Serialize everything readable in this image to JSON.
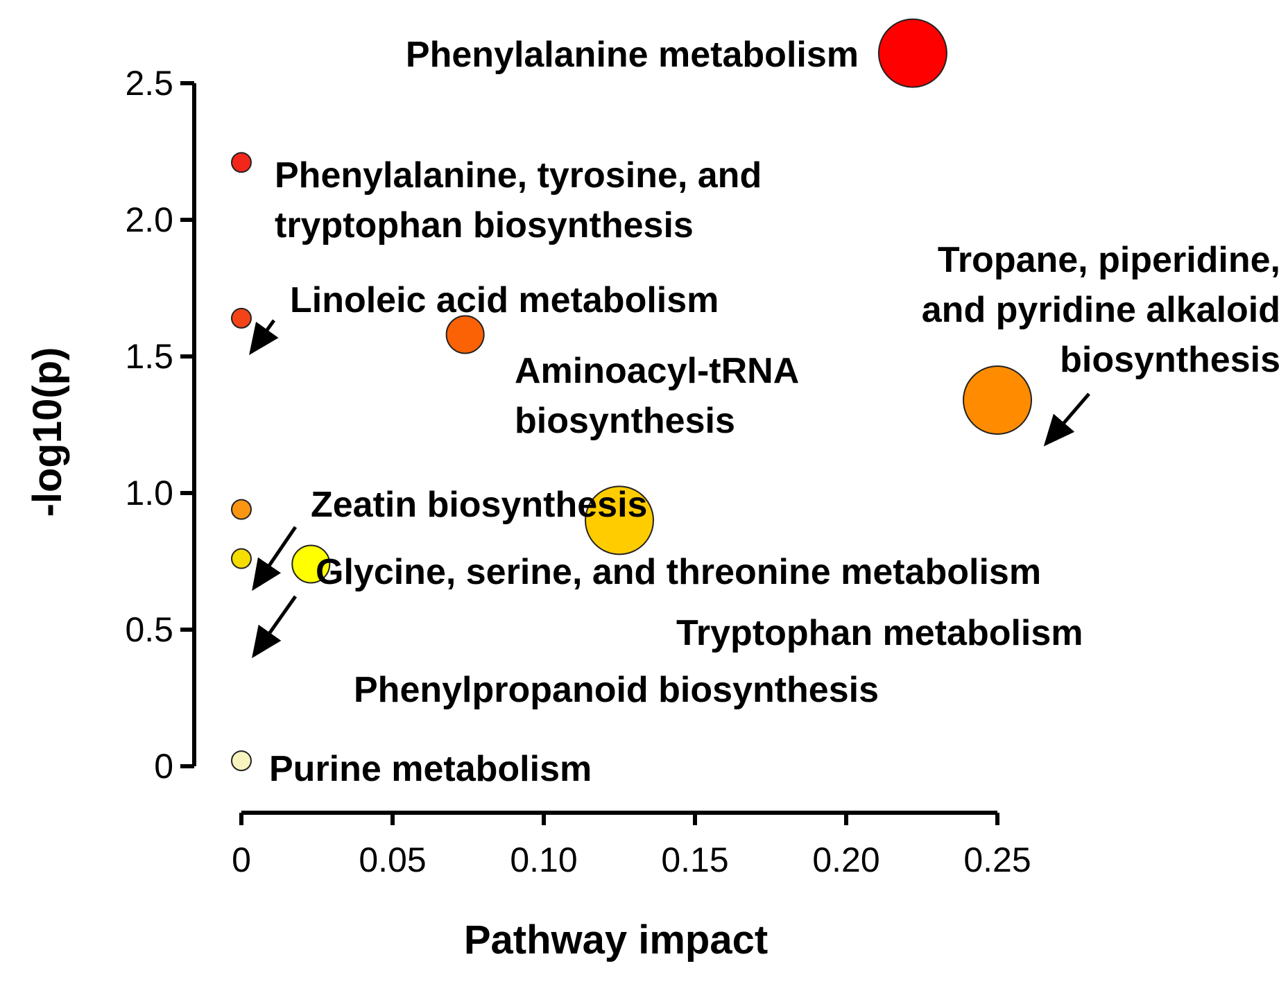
{
  "chart_data": {
    "type": "scatter",
    "title": "",
    "xlabel": "Pathway impact",
    "ylabel": "-log10(p)",
    "xlim": [
      0,
      0.25
    ],
    "ylim": [
      0,
      2.5
    ],
    "x_ticks": [
      {
        "value": 0,
        "label": "0"
      },
      {
        "value": 0.05,
        "label": "0.05"
      },
      {
        "value": 0.1,
        "label": "0.10"
      },
      {
        "value": 0.15,
        "label": "0.15"
      },
      {
        "value": 0.2,
        "label": "0.20"
      },
      {
        "value": 0.25,
        "label": "0.25"
      }
    ],
    "y_ticks": [
      {
        "value": 0,
        "label": "0"
      },
      {
        "value": 0.5,
        "label": "0.5"
      },
      {
        "value": 1.0,
        "label": "1.0"
      },
      {
        "value": 1.5,
        "label": "1.5"
      },
      {
        "value": 2.0,
        "label": "2.0"
      },
      {
        "value": 2.5,
        "label": "2.5"
      }
    ],
    "points": [
      {
        "name": "Phenylalanine metabolism",
        "label_lines": [
          "Phenylalanine metabolism"
        ],
        "x": 0.222,
        "y": 2.61,
        "size": "large",
        "color": "#ff0000"
      },
      {
        "name": "Phenylalanine, tyrosine, and tryptophan biosynthesis",
        "label_lines": [
          "Phenylalanine, tyrosine, and",
          "tryptophan biosynthesis"
        ],
        "x": 0.0,
        "y": 2.21,
        "size": "small",
        "color": "#f2261a"
      },
      {
        "name": "Linoleic acid metabolism",
        "label_lines": [
          "Linoleic acid metabolism"
        ],
        "x": 0.0,
        "y": 1.64,
        "size": "small",
        "color": "#f24418"
      },
      {
        "name": "Aminoacyl-tRNA biosynthesis",
        "label_lines": [
          "Aminoacyl-tRNA",
          "biosynthesis"
        ],
        "x": 0.074,
        "y": 1.58,
        "size": "medium",
        "color": "#fb6205"
      },
      {
        "name": "Tropane, piperidine, and pyridine alkaloid biosynthesis",
        "label_lines": [
          "Tropane, piperidine,",
          "and pyridine alkaloid",
          "biosynthesis"
        ],
        "x": 0.25,
        "y": 1.34,
        "size": "large",
        "color": "#ff8c00"
      },
      {
        "name": "Zeatin biosynthesis",
        "label_lines": [
          "Zeatin biosynthesis"
        ],
        "x": 0.0,
        "y": 0.94,
        "size": "small",
        "color": "#fb9512"
      },
      {
        "name": "Tryptophan metabolism",
        "label_lines": [
          "Tryptophan metabolism"
        ],
        "x": 0.125,
        "y": 0.9,
        "size": "large",
        "color": "#ffcc00"
      },
      {
        "name": "Glycine, serine, and threonine metabolism",
        "label_lines": [
          "Glycine, serine, and threonine metabolism"
        ],
        "x": 0.0,
        "y": 0.76,
        "size": "small",
        "color": "#f5dd00"
      },
      {
        "name": "Phenylpropanoid biosynthesis",
        "label_lines": [
          "Phenylpropanoid biosynthesis"
        ],
        "x": 0.023,
        "y": 0.74,
        "size": "medium",
        "color": "#ffff00"
      },
      {
        "name": "Purine metabolism",
        "label_lines": [
          "Purine metabolism"
        ],
        "x": 0.0,
        "y": 0.02,
        "size": "small",
        "color": "#f8f4c0"
      }
    ]
  }
}
